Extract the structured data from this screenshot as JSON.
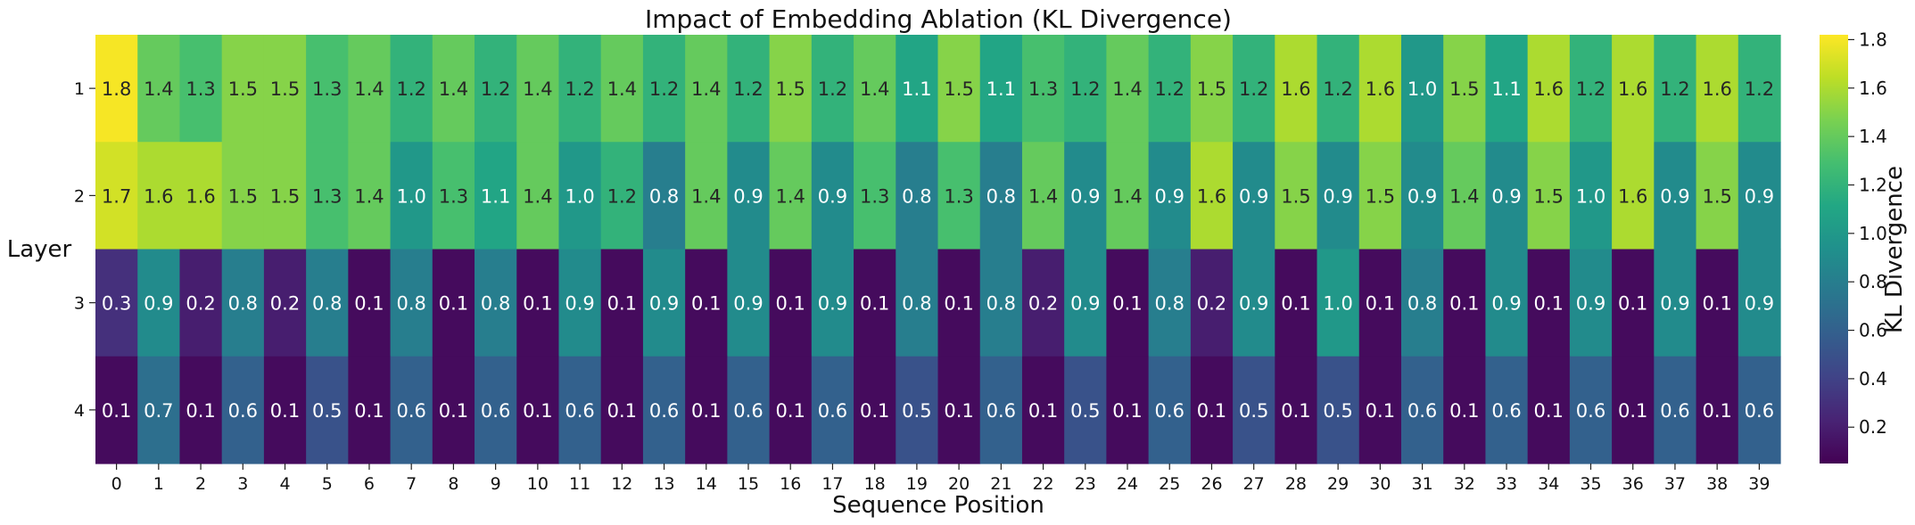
{
  "chart_data": {
    "type": "heatmap",
    "title": "Impact of Embedding Ablation (KL Divergence)",
    "xlabel": "Sequence Position",
    "ylabel": "Layer",
    "colorbar_label": "KL Divergence",
    "colormap": "viridis",
    "vmin": 0.05,
    "vmax": 1.82,
    "colorbar_ticks": [
      "0.2",
      "0.4",
      "0.6",
      "0.8",
      "1.0",
      "1.2",
      "1.4",
      "1.6",
      "1.8"
    ],
    "x_ticks": [
      "0",
      "1",
      "2",
      "3",
      "4",
      "5",
      "6",
      "7",
      "8",
      "9",
      "10",
      "11",
      "12",
      "13",
      "14",
      "15",
      "16",
      "17",
      "18",
      "19",
      "20",
      "21",
      "22",
      "23",
      "24",
      "25",
      "26",
      "27",
      "28",
      "29",
      "30",
      "31",
      "32",
      "33",
      "34",
      "35",
      "36",
      "37",
      "38",
      "39"
    ],
    "y_ticks": [
      "1",
      "2",
      "3",
      "4"
    ],
    "values": [
      [
        1.8,
        1.4,
        1.3,
        1.5,
        1.5,
        1.3,
        1.4,
        1.2,
        1.4,
        1.2,
        1.4,
        1.2,
        1.4,
        1.2,
        1.4,
        1.2,
        1.5,
        1.2,
        1.4,
        1.1,
        1.5,
        1.1,
        1.3,
        1.2,
        1.4,
        1.2,
        1.5,
        1.2,
        1.6,
        1.2,
        1.6,
        1.0,
        1.5,
        1.1,
        1.6,
        1.2,
        1.6,
        1.2,
        1.6,
        1.2
      ],
      [
        1.7,
        1.6,
        1.6,
        1.5,
        1.5,
        1.3,
        1.4,
        1.0,
        1.3,
        1.1,
        1.4,
        1.0,
        1.2,
        0.8,
        1.4,
        0.9,
        1.4,
        0.9,
        1.3,
        0.8,
        1.3,
        0.8,
        1.4,
        0.9,
        1.4,
        0.9,
        1.6,
        0.9,
        1.5,
        0.9,
        1.5,
        0.9,
        1.4,
        0.9,
        1.5,
        1.0,
        1.6,
        0.9,
        1.5,
        0.9
      ],
      [
        0.3,
        0.9,
        0.2,
        0.8,
        0.2,
        0.8,
        0.1,
        0.8,
        0.1,
        0.8,
        0.1,
        0.9,
        0.1,
        0.9,
        0.1,
        0.9,
        0.1,
        0.9,
        0.1,
        0.8,
        0.1,
        0.8,
        0.2,
        0.9,
        0.1,
        0.8,
        0.2,
        0.9,
        0.1,
        1.0,
        0.1,
        0.8,
        0.1,
        0.9,
        0.1,
        0.9,
        0.1,
        0.9,
        0.1,
        0.9
      ],
      [
        0.1,
        0.7,
        0.1,
        0.6,
        0.1,
        0.5,
        0.1,
        0.6,
        0.1,
        0.6,
        0.1,
        0.6,
        0.1,
        0.6,
        0.1,
        0.6,
        0.1,
        0.6,
        0.1,
        0.5,
        0.1,
        0.6,
        0.1,
        0.5,
        0.1,
        0.6,
        0.1,
        0.5,
        0.1,
        0.5,
        0.1,
        0.6,
        0.1,
        0.6,
        0.1,
        0.6,
        0.1,
        0.6,
        0.1,
        0.6
      ]
    ]
  }
}
